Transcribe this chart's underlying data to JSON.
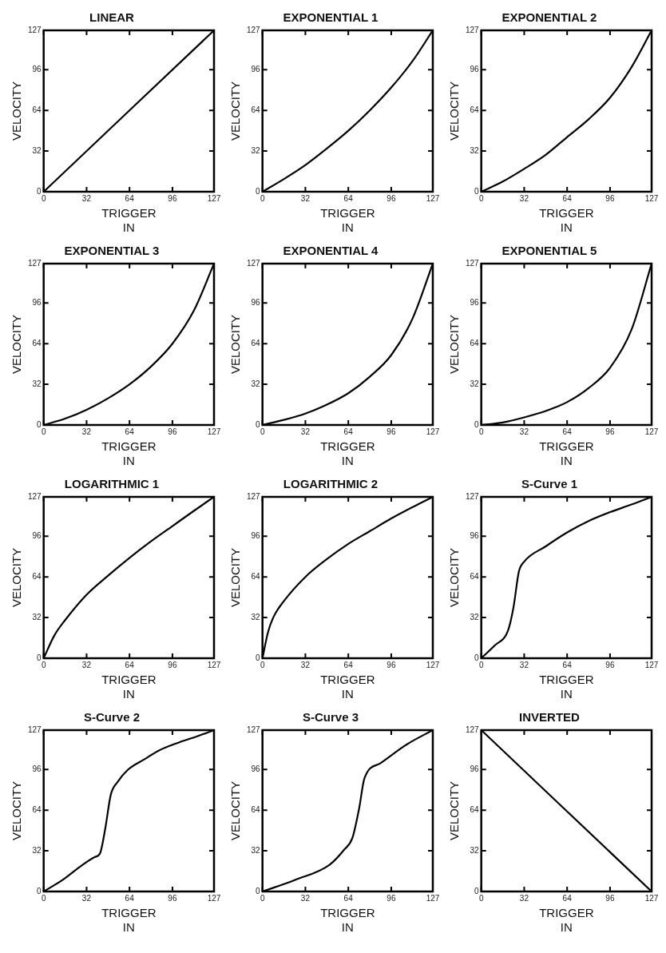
{
  "chart_data": [
    {
      "type": "line",
      "title": "LINEAR",
      "xlabel": "TRIGGER\nIN",
      "ylabel": "VELOCITY",
      "x": [
        0,
        127
      ],
      "values": [
        0,
        127
      ],
      "color": "#000000",
      "xlim": [
        0,
        127
      ],
      "ylim": [
        0,
        127
      ],
      "xticks": [
        0,
        32,
        64,
        96,
        127
      ],
      "yticks": [
        0,
        32,
        64,
        96,
        127
      ],
      "grid": false,
      "legend": false
    },
    {
      "type": "line",
      "title": "EXPONENTIAL 1",
      "xlabel": "TRIGGER\nIN",
      "ylabel": "VELOCITY",
      "x": [
        0,
        16,
        32,
        48,
        64,
        80,
        96,
        112,
        127
      ],
      "values": [
        0,
        10,
        21,
        34,
        48,
        64,
        82,
        103,
        127
      ],
      "color": "#000000",
      "xlim": [
        0,
        127
      ],
      "ylim": [
        0,
        127
      ],
      "xticks": [
        0,
        32,
        64,
        96,
        127
      ],
      "yticks": [
        0,
        32,
        64,
        96,
        127
      ],
      "grid": false,
      "legend": false
    },
    {
      "type": "line",
      "title": "EXPONENTIAL 2",
      "xlabel": "TRIGGER\nIN",
      "ylabel": "VELOCITY",
      "x": [
        0,
        16,
        32,
        48,
        64,
        80,
        96,
        112,
        127
      ],
      "values": [
        0,
        8,
        18,
        29,
        43,
        57,
        74,
        98,
        127
      ],
      "color": "#000000",
      "xlim": [
        0,
        127
      ],
      "ylim": [
        0,
        127
      ],
      "xticks": [
        0,
        32,
        64,
        96,
        127
      ],
      "yticks": [
        0,
        32,
        64,
        96,
        127
      ],
      "grid": false,
      "legend": false
    },
    {
      "type": "line",
      "title": "EXPONENTIAL 3",
      "xlabel": "TRIGGER\nIN",
      "ylabel": "VELOCITY",
      "x": [
        0,
        16,
        32,
        48,
        64,
        80,
        96,
        112,
        127
      ],
      "values": [
        0,
        5,
        12,
        21,
        32,
        46,
        64,
        90,
        127
      ],
      "color": "#000000",
      "xlim": [
        0,
        127
      ],
      "ylim": [
        0,
        127
      ],
      "xticks": [
        0,
        32,
        64,
        96,
        127
      ],
      "yticks": [
        0,
        32,
        64,
        96,
        127
      ],
      "grid": false,
      "legend": false
    },
    {
      "type": "line",
      "title": "EXPONENTIAL 4",
      "xlabel": "TRIGGER\nIN",
      "ylabel": "VELOCITY",
      "x": [
        0,
        16,
        32,
        48,
        64,
        80,
        96,
        112,
        127
      ],
      "values": [
        0,
        4,
        9,
        16,
        25,
        38,
        55,
        84,
        127
      ],
      "color": "#000000",
      "xlim": [
        0,
        127
      ],
      "ylim": [
        0,
        127
      ],
      "xticks": [
        0,
        32,
        64,
        96,
        127
      ],
      "yticks": [
        0,
        32,
        64,
        96,
        127
      ],
      "grid": false,
      "legend": false
    },
    {
      "type": "line",
      "title": "EXPONENTIAL 5",
      "xlabel": "TRIGGER\nIN",
      "ylabel": "VELOCITY",
      "x": [
        0,
        16,
        32,
        48,
        64,
        80,
        96,
        112,
        127
      ],
      "values": [
        0,
        2,
        6,
        11,
        18,
        29,
        45,
        75,
        127
      ],
      "color": "#000000",
      "xlim": [
        0,
        127
      ],
      "ylim": [
        0,
        127
      ],
      "xticks": [
        0,
        32,
        64,
        96,
        127
      ],
      "yticks": [
        0,
        32,
        64,
        96,
        127
      ],
      "grid": false,
      "legend": false
    },
    {
      "type": "line",
      "title": "LOGARITHMIC 1",
      "xlabel": "TRIGGER\nIN",
      "ylabel": "VELOCITY",
      "x": [
        0,
        8,
        16,
        32,
        48,
        64,
        80,
        96,
        112,
        127
      ],
      "values": [
        0,
        18,
        30,
        50,
        65,
        79,
        92,
        104,
        116,
        127
      ],
      "color": "#000000",
      "xlim": [
        0,
        127
      ],
      "ylim": [
        0,
        127
      ],
      "xticks": [
        0,
        32,
        64,
        96,
        127
      ],
      "yticks": [
        0,
        32,
        64,
        96,
        127
      ],
      "grid": false,
      "legend": false
    },
    {
      "type": "line",
      "title": "LOGARITHMIC 2",
      "xlabel": "TRIGGER\nIN",
      "ylabel": "VELOCITY",
      "x": [
        0,
        4,
        8,
        16,
        32,
        48,
        64,
        80,
        96,
        112,
        127
      ],
      "values": [
        0,
        20,
        32,
        45,
        64,
        78,
        90,
        100,
        110,
        119,
        127
      ],
      "color": "#000000",
      "xlim": [
        0,
        127
      ],
      "ylim": [
        0,
        127
      ],
      "xticks": [
        0,
        32,
        64,
        96,
        127
      ],
      "yticks": [
        0,
        32,
        64,
        96,
        127
      ],
      "grid": false,
      "legend": false
    },
    {
      "type": "line",
      "title": "S-Curve 1",
      "xlabel": "TRIGGER\nIN",
      "ylabel": "VELOCITY",
      "x": [
        0,
        10,
        20,
        24,
        28,
        32,
        48,
        64,
        80,
        96,
        112,
        127
      ],
      "values": [
        0,
        10,
        22,
        40,
        68,
        76,
        88,
        99,
        108,
        115,
        121,
        127
      ],
      "color": "#000000",
      "xlim": [
        0,
        127
      ],
      "ylim": [
        0,
        127
      ],
      "xticks": [
        0,
        32,
        64,
        96,
        127
      ],
      "yticks": [
        0,
        32,
        64,
        96,
        127
      ],
      "grid": false,
      "legend": false
    },
    {
      "type": "line",
      "title": "S-Curve 2",
      "xlabel": "TRIGGER\nIN",
      "ylabel": "VELOCITY",
      "x": [
        0,
        14,
        29,
        38,
        42,
        46,
        50,
        55,
        63,
        75,
        86,
        100,
        114,
        127
      ],
      "values": [
        0,
        9,
        21,
        27,
        30,
        50,
        76,
        86,
        96,
        104,
        111,
        117,
        122,
        127
      ],
      "color": "#000000",
      "xlim": [
        0,
        127
      ],
      "ylim": [
        0,
        127
      ],
      "xticks": [
        0,
        32,
        64,
        96,
        127
      ],
      "yticks": [
        0,
        32,
        64,
        96,
        127
      ],
      "grid": false,
      "legend": false
    },
    {
      "type": "line",
      "title": "S-Curve 3",
      "xlabel": "TRIGGER\nIN",
      "ylabel": "VELOCITY",
      "x": [
        0,
        24,
        50,
        61,
        67,
        72,
        76,
        88,
        108,
        127
      ],
      "values": [
        0,
        9,
        21,
        33,
        42,
        65,
        89,
        101,
        116,
        127
      ],
      "color": "#000000",
      "xlim": [
        0,
        127
      ],
      "ylim": [
        0,
        127
      ],
      "xticks": [
        0,
        32,
        64,
        96,
        127
      ],
      "yticks": [
        0,
        32,
        64,
        96,
        127
      ],
      "grid": false,
      "legend": false
    },
    {
      "type": "line",
      "title": "INVERTED",
      "xlabel": "TRIGGER\nIN",
      "ylabel": "VELOCITY",
      "x": [
        0,
        127
      ],
      "values": [
        127,
        0
      ],
      "color": "#000000",
      "xlim": [
        0,
        127
      ],
      "ylim": [
        0,
        127
      ],
      "xticks": [
        0,
        32,
        64,
        96,
        127
      ],
      "yticks": [
        0,
        32,
        64,
        96,
        127
      ],
      "grid": false,
      "legend": false
    }
  ]
}
